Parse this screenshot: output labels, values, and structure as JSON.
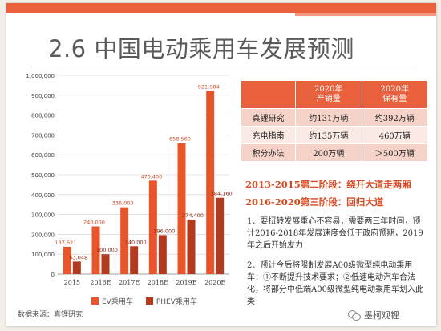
{
  "slide": {
    "title": "2.6 中国电动乘用车发展预测",
    "source": "数据来源：真锂研究",
    "watermark": "墨柯观锂"
  },
  "colors": {
    "ev": "#e8552b",
    "phev": "#b23a1f",
    "accent": "#e8603c"
  },
  "chart_data": {
    "type": "bar",
    "categories": [
      "2015",
      "2016E",
      "2017E",
      "2018E",
      "2019E",
      "2020E"
    ],
    "series": [
      {
        "name": "EV乘用车",
        "values": [
          137621,
          240000,
          336000,
          470400,
          658560,
          921984
        ]
      },
      {
        "name": "PHEV乘用车",
        "values": [
          63048,
          100000,
          140000,
          196000,
          274400,
          384160
        ]
      }
    ],
    "ev_labels": [
      "137,621",
      "240,000",
      "336,000",
      "470,400",
      "658,560",
      "921,984"
    ],
    "phev_labels": [
      "63,048",
      "100,000",
      "140,000",
      "196,000",
      "274,400",
      "384,160"
    ],
    "yticks": [
      "0",
      "100,000",
      "200,000",
      "300,000",
      "400,000",
      "500,000",
      "600,000",
      "700,000",
      "800,000",
      "900,000",
      "1,000,000"
    ],
    "ylim": [
      0,
      1000000
    ],
    "grid": true,
    "legend": "bottom"
  },
  "table": {
    "headers": [
      "",
      "2020年\n产销量",
      "2020年\n保有量"
    ],
    "rows": [
      [
        "真锂研究",
        "约131万辆",
        "约392万辆"
      ],
      [
        "充电指南",
        "约135万辆",
        "460万辆"
      ],
      [
        "积分办法",
        "200万辆",
        "＞500万辆"
      ]
    ]
  },
  "stages": [
    "2013-2015第二阶段：绕开大道走两厢",
    "2016-2020第三阶段：回归大道"
  ],
  "notes": [
    "1、要扭转发展重心不容易，需要两三年时间，预计2016-2018年发展速度会低于政府预期，2019年之后开始发力",
    "2、预计今后将限制发展A00级微型纯电动乘用车：①不断提升技术要求；②低速电动汽车合法化，将部分中低端A00级微型纯电动乘用车划入此类"
  ]
}
